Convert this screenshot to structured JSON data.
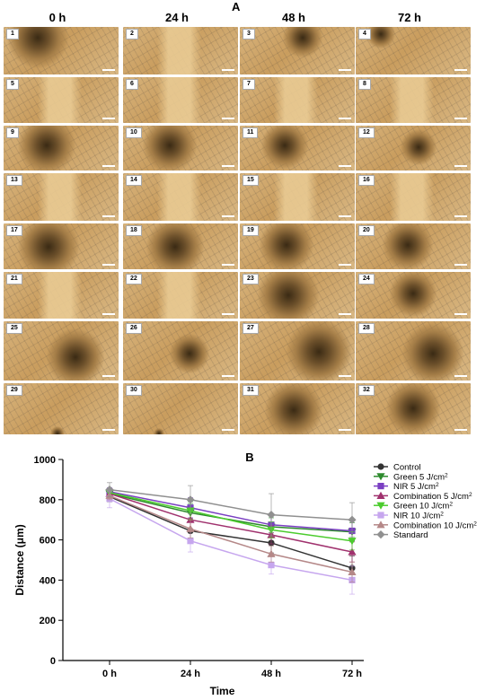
{
  "panel_a_label": "A",
  "panel_b_label": "B",
  "columns": [
    "0 h",
    "24 h",
    "48 h",
    "72 h"
  ],
  "tiles": [
    "1",
    "2",
    "3",
    "4",
    "5",
    "6",
    "7",
    "8",
    "9",
    "10",
    "11",
    "12",
    "13",
    "14",
    "15",
    "16",
    "17",
    "18",
    "19",
    "20",
    "21",
    "22",
    "23",
    "24",
    "25",
    "26",
    "27",
    "28",
    "29",
    "30",
    "31",
    "32"
  ],
  "chart_data": {
    "type": "line",
    "xlabel": "Time",
    "ylabel": "Distance (μm)",
    "categories": [
      "0 h",
      "24 h",
      "48 h",
      "72 h"
    ],
    "ylim": [
      0,
      1000
    ],
    "yticks": [
      0,
      200,
      400,
      600,
      800,
      1000
    ],
    "legend_position": "top-right",
    "grid": false,
    "series": [
      {
        "name": "Control",
        "sup": "",
        "color": "#333333",
        "marker": "circle",
        "values": [
          815,
          645,
          585,
          460
        ],
        "err": [
          25,
          60,
          50,
          60
        ]
      },
      {
        "name": "Green 5 J/cm",
        "sup": "2",
        "color": "#2e8b2e",
        "marker": "triangle-down",
        "values": [
          830,
          735,
          665,
          640
        ],
        "err": [
          25,
          45,
          45,
          45
        ]
      },
      {
        "name": "NIR 5 J/cm",
        "sup": "2",
        "color": "#7a3fc2",
        "marker": "square",
        "values": [
          840,
          760,
          675,
          645
        ],
        "err": [
          20,
          50,
          50,
          50
        ]
      },
      {
        "name": "Combination 5 J/cm",
        "sup": "2",
        "color": "#a0326e",
        "marker": "triangle-up",
        "values": [
          830,
          700,
          625,
          540
        ],
        "err": [
          20,
          45,
          45,
          50
        ]
      },
      {
        "name": "Green 10 J/cm",
        "sup": "2",
        "color": "#4ccc2e",
        "marker": "triangle-down",
        "values": [
          835,
          745,
          650,
          595
        ],
        "err": [
          20,
          45,
          40,
          45
        ]
      },
      {
        "name": "NIR 10 J/cm",
        "sup": "2",
        "color": "#c6a6ee",
        "marker": "square",
        "values": [
          805,
          595,
          475,
          400
        ],
        "err": [
          45,
          55,
          45,
          70
        ]
      },
      {
        "name": "Combination 10 J/cm",
        "sup": "2",
        "color": "#b58888",
        "marker": "triangle-up",
        "values": [
          820,
          655,
          530,
          440
        ],
        "err": [
          20,
          45,
          40,
          50
        ]
      },
      {
        "name": "Standard",
        "sup": "",
        "color": "#909090",
        "marker": "diamond",
        "values": [
          850,
          800,
          725,
          700
        ],
        "err": [
          35,
          70,
          105,
          85
        ]
      }
    ]
  }
}
